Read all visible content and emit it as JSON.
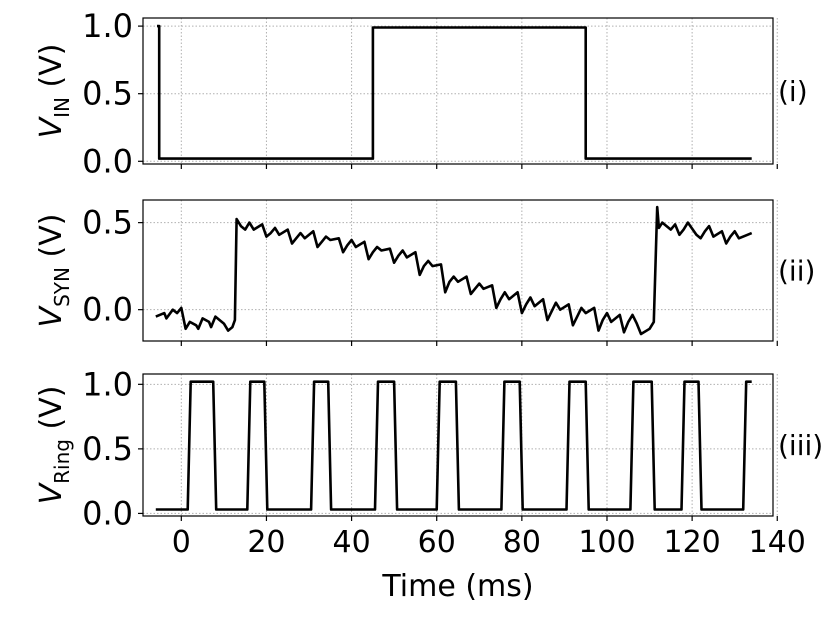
{
  "chart_data": {
    "type": "line",
    "xlabel": "Time (ms)",
    "x_ticks": [
      0,
      20,
      40,
      60,
      80,
      100,
      120,
      140
    ],
    "xlim": [
      -9,
      139
    ],
    "grid": true,
    "panels": [
      {
        "tag": "(i)",
        "ylabel_main": "V",
        "ylabel_sub": "IN",
        "ylabel_unit": " (V)",
        "ylim": [
          -0.02,
          1.06
        ],
        "y_ticks": [
          0.0,
          0.5,
          1.0
        ],
        "y_tick_labels": [
          "0.0",
          "0.5",
          "1.0"
        ],
        "series": [
          {
            "x": [
              -5.7,
              -5.2,
              -5.2,
              45.0,
              45.0,
              95.0,
              95.0,
              134.0
            ],
            "y": [
              1.0,
              1.0,
              0.02,
              0.02,
              0.99,
              0.99,
              0.02,
              0.02
            ]
          }
        ]
      },
      {
        "tag": "(ii)",
        "ylabel_main": "V",
        "ylabel_sub": "SYN",
        "ylabel_unit": " (V)",
        "ylim": [
          -0.18,
          0.63
        ],
        "y_ticks": [
          0.0,
          0.5
        ],
        "y_tick_labels": [
          "0.0",
          "0.5"
        ],
        "series": [
          {
            "x": [
              -6,
              -4,
              -3.5,
              -2,
              -1,
              0,
              1,
              2,
              3.5,
              4,
              5,
              6.5,
              7,
              8,
              10,
              11,
              12,
              12.6,
              13,
              14,
              15,
              16,
              17,
              19,
              20,
              21,
              22,
              23,
              25,
              26,
              27,
              28,
              29,
              31,
              32,
              33,
              34,
              35,
              37,
              38,
              39,
              40,
              41,
              43,
              44,
              45,
              46,
              47,
              49,
              50,
              51,
              52,
              53,
              55,
              56,
              57,
              58,
              59,
              61,
              62,
              63,
              64,
              65,
              67,
              68,
              69,
              70,
              71,
              73,
              74,
              75,
              76,
              77,
              79,
              80,
              81,
              82,
              83,
              85,
              86,
              87,
              88,
              89,
              91,
              92,
              93,
              94,
              95,
              97,
              98,
              99,
              100,
              101,
              103,
              104,
              105,
              106,
              107,
              108,
              110,
              111,
              111.8,
              112.2,
              113,
              115,
              116,
              117,
              118,
              119,
              121,
              122,
              123,
              124,
              125,
              127,
              128,
              129,
              130,
              131,
              133,
              134
            ],
            "y": [
              -0.04,
              -0.02,
              -0.05,
              0.0,
              -0.02,
              0.01,
              -0.11,
              -0.07,
              -0.09,
              -0.11,
              -0.05,
              -0.07,
              -0.1,
              -0.04,
              -0.08,
              -0.12,
              -0.1,
              -0.06,
              0.52,
              0.48,
              0.46,
              0.5,
              0.46,
              0.49,
              0.42,
              0.44,
              0.47,
              0.43,
              0.46,
              0.38,
              0.41,
              0.44,
              0.41,
              0.45,
              0.36,
              0.39,
              0.42,
              0.4,
              0.41,
              0.33,
              0.37,
              0.4,
              0.36,
              0.39,
              0.29,
              0.33,
              0.36,
              0.34,
              0.35,
              0.27,
              0.31,
              0.34,
              0.3,
              0.33,
              0.2,
              0.25,
              0.28,
              0.25,
              0.26,
              0.1,
              0.16,
              0.19,
              0.16,
              0.19,
              0.09,
              0.12,
              0.15,
              0.12,
              0.14,
              0.01,
              0.06,
              0.1,
              0.06,
              0.1,
              -0.02,
              0.03,
              0.07,
              0.02,
              0.06,
              -0.06,
              -0.01,
              0.04,
              0.0,
              0.03,
              -0.09,
              -0.04,
              0.01,
              -0.02,
              0.01,
              -0.12,
              -0.06,
              -0.02,
              -0.07,
              -0.03,
              -0.13,
              -0.07,
              -0.03,
              -0.08,
              -0.14,
              -0.11,
              -0.07,
              0.59,
              0.47,
              0.5,
              0.46,
              0.49,
              0.43,
              0.46,
              0.5,
              0.43,
              0.41,
              0.45,
              0.48,
              0.42,
              0.45,
              0.38,
              0.42,
              0.45,
              0.41,
              0.43,
              0.44
            ]
          }
        ]
      },
      {
        "tag": "(iii)",
        "ylabel_main": "V",
        "ylabel_sub": "Ring",
        "ylabel_unit": " (V)",
        "ylim": [
          -0.02,
          1.08
        ],
        "y_ticks": [
          0.0,
          0.5,
          1.0
        ],
        "y_tick_labels": [
          "0.0",
          "0.5",
          "1.0"
        ],
        "series": [
          {
            "x": [
              -6,
              1.5,
              2.2,
              7.5,
              8.2,
              15.5,
              16.2,
              19.5,
              20.2,
              30.5,
              31.2,
              34.5,
              35.2,
              45.5,
              46.2,
              50.0,
              50.7,
              60.0,
              60.7,
              64.5,
              65.2,
              75.2,
              75.9,
              79.5,
              80.2,
              90.5,
              91.2,
              95.0,
              95.7,
              105.5,
              106.2,
              110.5,
              111.2,
              117.5,
              118.2,
              121.5,
              122.2,
              132.0,
              132.7,
              134.0
            ],
            "y": [
              0.03,
              0.03,
              1.02,
              1.02,
              0.03,
              0.03,
              1.02,
              1.02,
              0.03,
              0.03,
              1.02,
              1.02,
              0.03,
              0.03,
              1.02,
              1.02,
              0.03,
              0.03,
              1.02,
              1.02,
              0.03,
              0.03,
              1.02,
              1.02,
              0.03,
              0.03,
              1.02,
              1.02,
              0.03,
              0.03,
              1.02,
              1.02,
              0.03,
              0.03,
              1.02,
              1.02,
              0.03,
              0.03,
              1.02,
              1.02
            ]
          }
        ]
      }
    ]
  }
}
